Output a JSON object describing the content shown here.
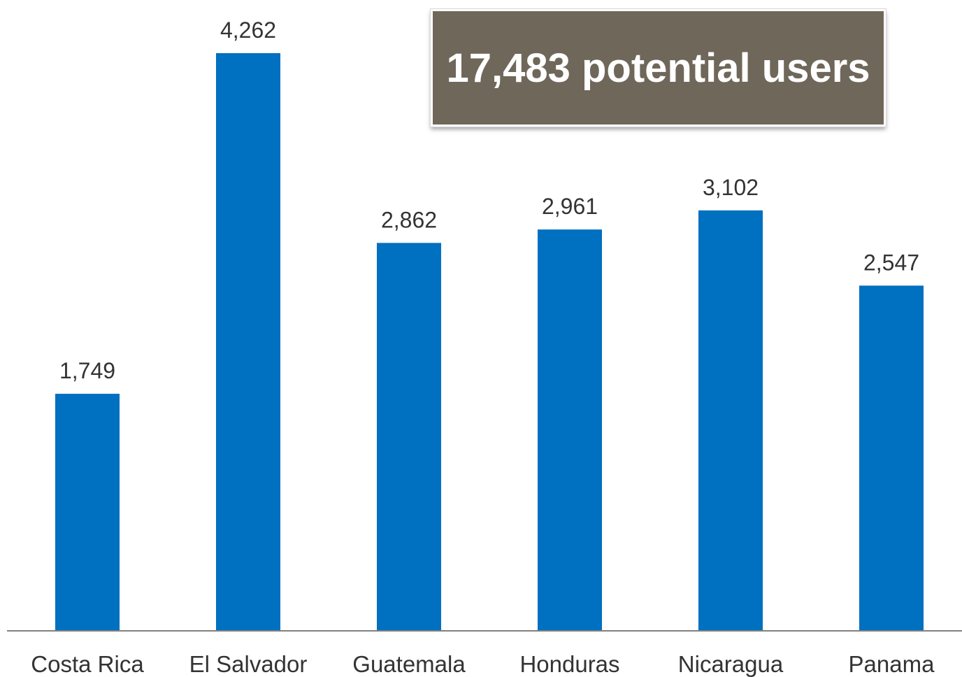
{
  "callout": {
    "text": "17,483 potential users"
  },
  "colors": {
    "bar": "#0070c0",
    "callout_bg": "#6f675a",
    "axis": "#808080"
  },
  "chart_data": {
    "type": "bar",
    "categories": [
      "Costa Rica",
      "El Salvador",
      "Guatemala",
      "Honduras",
      "Nicaragua",
      "Panama"
    ],
    "values": [
      1749,
      4262,
      2862,
      2961,
      3102,
      2547
    ],
    "value_labels": [
      "1,749",
      "4,262",
      "2,862",
      "2,961",
      "3,102",
      "2,547"
    ],
    "title": "",
    "xlabel": "",
    "ylabel": "",
    "ylim": [
      0,
      4400
    ],
    "grid": false,
    "legend": "none"
  }
}
